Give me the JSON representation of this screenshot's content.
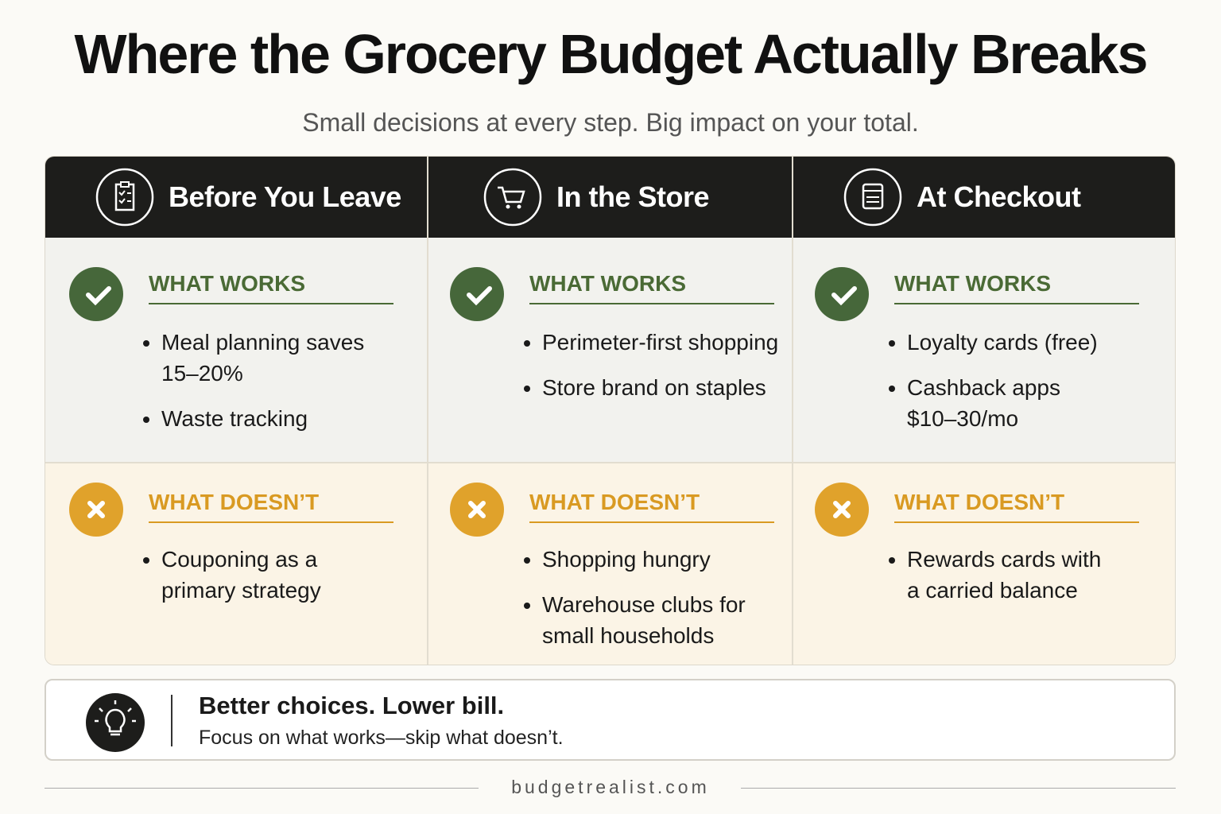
{
  "header": {
    "title": "Where the Grocery Budget Actually Breaks",
    "subtitle": "Small decisions at every step. Big impact on your total."
  },
  "columns": [
    {
      "title": "Before You Leave",
      "works_heading": "WHAT WORKS",
      "works": [
        "Meal planning saves 15–20%",
        "Waste tracking"
      ],
      "doesnt_heading": "WHAT DOESN’T",
      "doesnt": [
        "Couponing as a primary strategy"
      ]
    },
    {
      "title": "In the Store",
      "works_heading": "WHAT WORKS",
      "works": [
        "Perimeter-first shopping",
        "Store brand on staples"
      ],
      "doesnt_heading": "WHAT DOESN’T",
      "doesnt": [
        "Shopping hungry",
        "Warehouse clubs for small households"
      ]
    },
    {
      "title": "At Checkout",
      "works_heading": "WHAT WORKS",
      "works": [
        "Loyalty cards (free)",
        "Cashback apps $10–30/mo"
      ],
      "doesnt_heading": "WHAT DOESN’T",
      "doesnt": [
        "Rewards cards with a carried balance"
      ]
    }
  ],
  "callout": {
    "title": "Better choices. Lower bill.",
    "text": "Focus on what works—skip what doesn’t."
  },
  "footer": {
    "site": "budgetrealist.com"
  }
}
